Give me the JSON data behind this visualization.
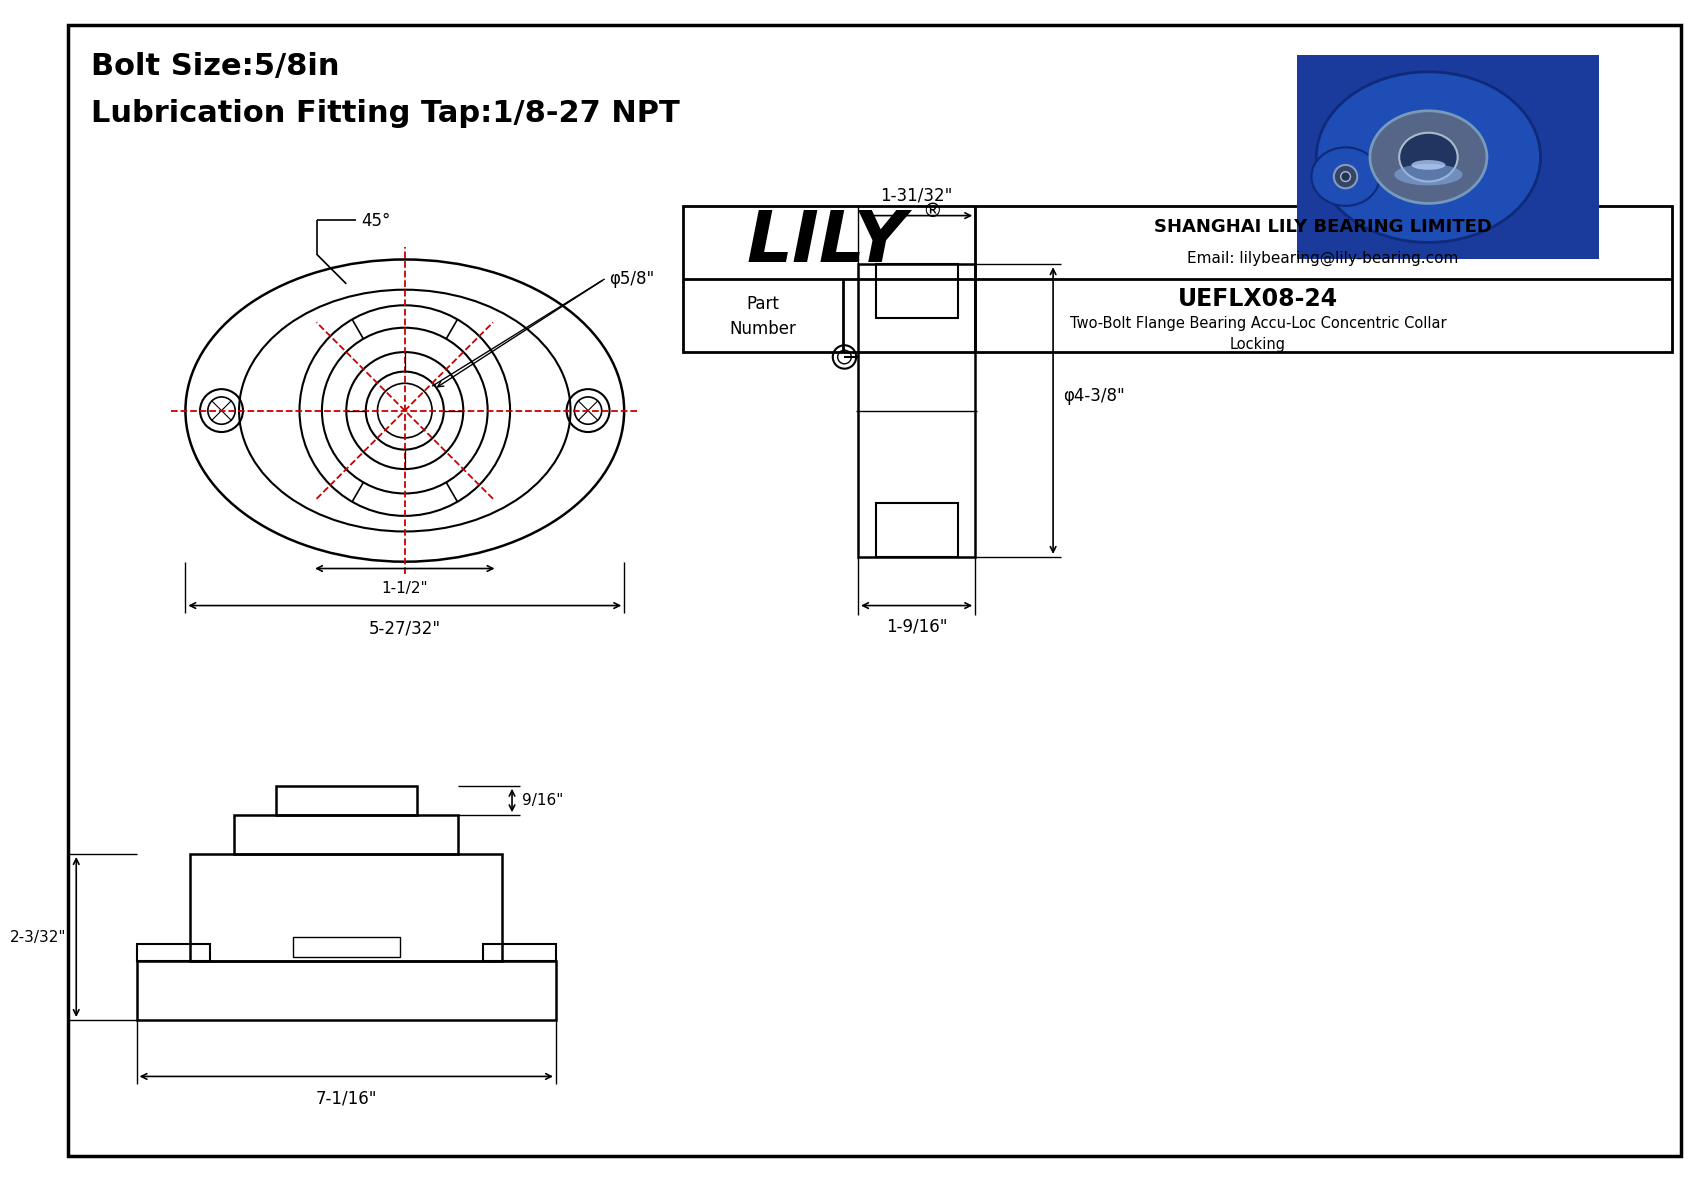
{
  "bg_color": "#ffffff",
  "line_color": "#000000",
  "red_color": "#cc0000",
  "header_line1": "Bolt Size:5/8in",
  "header_line2": "Lubrication Fitting Tap:1/8-27 NPT",
  "company_name": "SHANGHAI LILY BEARING LIMITED",
  "company_email": "Email: lilybearing@lily-bearing.com",
  "part_number_label": "Part\nNumber",
  "part_number": "UEFLX08-24",
  "part_description": "Two-Bolt Flange Bearing Accu-Loc Concentric Collar\nLocking",
  "lily_text": "LILY",
  "dim_bore": "φ5/8\"",
  "dim_45deg": "45°",
  "dim_width": "5-27/32\"",
  "dim_inner_width": "1-1/2\"",
  "dim_top_width": "1-31/32\"",
  "dim_side_height": "φ4-3/8\"",
  "dim_bottom_width": "1-9/16\"",
  "dim_front_height": "2-3/32\"",
  "dim_front_width": "7-1/16\"",
  "dim_front_top": "9/16\"",
  "photo_colors": {
    "bg": "#1a3a9c",
    "body": "#1e4db5",
    "body_dark": "#0f2a7a",
    "ring_outer": "#3060c0",
    "ring_inner": "#6090d0",
    "bore": "#203560",
    "highlight": "#7aabf0",
    "bolt_hole": "#102050"
  }
}
